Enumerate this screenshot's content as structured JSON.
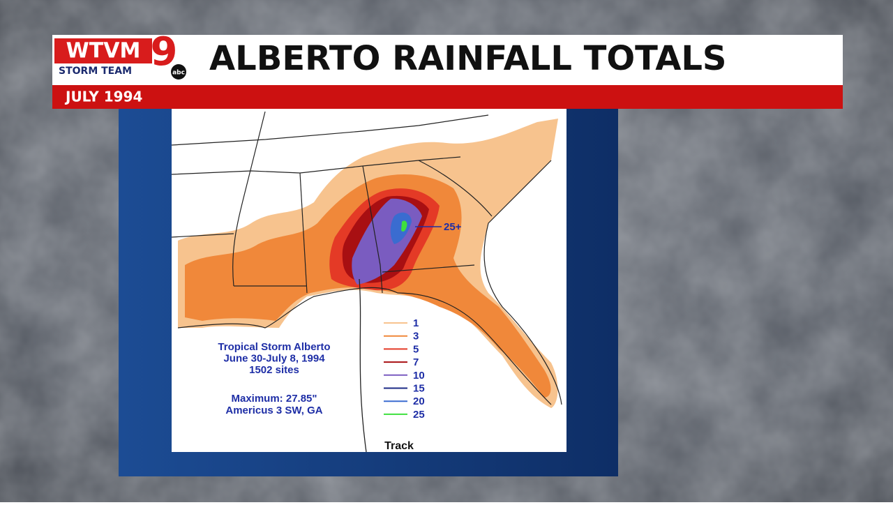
{
  "header": {
    "logo": {
      "station": "WTVM",
      "channel": "9",
      "team": "STORM TEAM",
      "network": "abc"
    },
    "title": "ALBERTO RAINFALL TOTALS",
    "subtitle": "JULY 1994"
  },
  "map": {
    "caption": [
      "Tropical Storm Alberto",
      "June 30-July 8, 1994",
      "1502 sites"
    ],
    "maximum": [
      "Maximum: 27.85\"",
      "Americus 3 SW, GA"
    ],
    "peak_label": "25+",
    "track_label": "Track",
    "legend": [
      {
        "label": 1,
        "color": "#f7c38e"
      },
      {
        "label": 3,
        "color": "#f0883a"
      },
      {
        "label": 5,
        "color": "#e43a26"
      },
      {
        "label": 7,
        "color": "#a80f12"
      },
      {
        "label": 10,
        "color": "#7a5cc0"
      },
      {
        "label": 15,
        "color": "#1b2a86"
      },
      {
        "label": 20,
        "color": "#3a6cd0"
      },
      {
        "label": 25,
        "color": "#3ee03e"
      }
    ]
  }
}
